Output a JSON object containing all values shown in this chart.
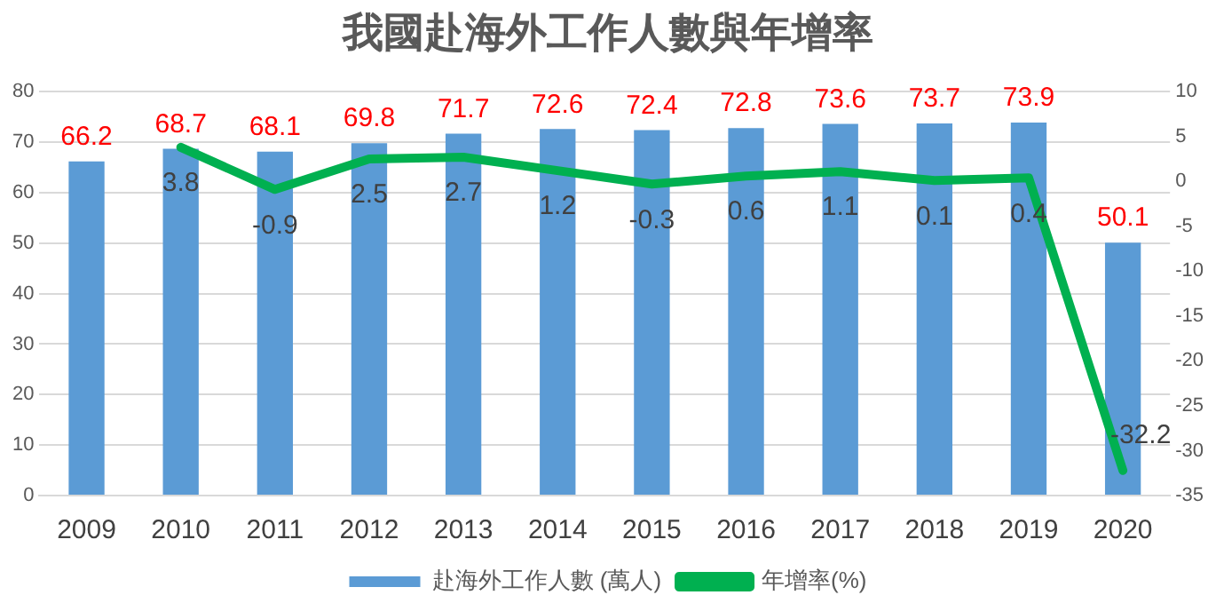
{
  "chart_data": {
    "type": "bar",
    "title": "我國赴海外工作人數與年增率",
    "categories": [
      "2009",
      "2010",
      "2011",
      "2012",
      "2013",
      "2014",
      "2015",
      "2016",
      "2017",
      "2018",
      "2019",
      "2020"
    ],
    "series": [
      {
        "name": "赴海外工作人數 (萬人)",
        "color": "#5b9bd5",
        "values": [
          66.2,
          68.7,
          68.1,
          69.8,
          71.7,
          72.6,
          72.4,
          72.8,
          73.6,
          73.7,
          73.9,
          50.1
        ]
      },
      {
        "name": "年增率(%)",
        "type": "line",
        "axis": "y2",
        "color": "#00b050",
        "values": [
          null,
          3.8,
          -0.9,
          2.5,
          2.7,
          1.2,
          -0.3,
          0.6,
          1.1,
          0.1,
          0.4,
          -32.2
        ]
      }
    ],
    "ylim": [
      0,
      80
    ],
    "yticks": [
      0,
      10,
      20,
      30,
      40,
      50,
      60,
      70,
      80
    ],
    "y2lim": [
      -35,
      10
    ],
    "y2ticks": [
      -35,
      -30,
      -25,
      -20,
      -15,
      -10,
      -5,
      0,
      5,
      10
    ],
    "grid": "y",
    "legend": "bottom",
    "data_labels": true,
    "marker": "none",
    "line_style": "solid"
  }
}
